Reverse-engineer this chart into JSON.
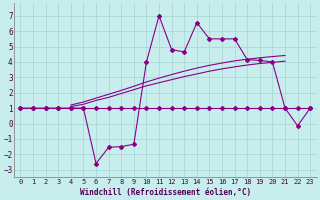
{
  "xlabel": "Windchill (Refroidissement éolien,°C)",
  "x_ticks": [
    0,
    1,
    2,
    3,
    4,
    5,
    6,
    7,
    8,
    9,
    10,
    11,
    12,
    13,
    14,
    15,
    16,
    17,
    18,
    19,
    20,
    21,
    22,
    23
  ],
  "ylim": [
    -3.5,
    7.8
  ],
  "xlim": [
    -0.5,
    23.5
  ],
  "yticks": [
    -3,
    -2,
    -1,
    0,
    1,
    2,
    3,
    4,
    5,
    6,
    7
  ],
  "bg_color": "#c8eded",
  "grid_color": "#a8d4d4",
  "line_color": "#880088",
  "flat_line_x": [
    0,
    1,
    2,
    3,
    4,
    5,
    6,
    7,
    8,
    9,
    10,
    11,
    12,
    13,
    14,
    15,
    16,
    17,
    18,
    19,
    20,
    21,
    22,
    23
  ],
  "flat_line_y": [
    1,
    1,
    1,
    1,
    1,
    1,
    1,
    1,
    1,
    1,
    1,
    1,
    1,
    1,
    1,
    1,
    1,
    1,
    1,
    1,
    1,
    1,
    1,
    1
  ],
  "reg_line1_x": [
    4,
    5,
    6,
    7,
    8,
    9,
    10,
    11,
    12,
    13,
    14,
    15,
    16,
    17,
    18,
    19,
    20,
    21
  ],
  "reg_line1_y": [
    1.1,
    1.25,
    1.5,
    1.7,
    1.95,
    2.2,
    2.45,
    2.65,
    2.85,
    3.05,
    3.22,
    3.4,
    3.55,
    3.68,
    3.8,
    3.9,
    3.97,
    4.05
  ],
  "reg_line2_x": [
    4,
    5,
    6,
    7,
    8,
    9,
    10,
    11,
    12,
    13,
    14,
    15,
    16,
    17,
    18,
    19,
    20,
    21
  ],
  "reg_line2_y": [
    1.2,
    1.4,
    1.65,
    1.9,
    2.15,
    2.42,
    2.7,
    2.95,
    3.18,
    3.4,
    3.6,
    3.78,
    3.93,
    4.07,
    4.18,
    4.27,
    4.35,
    4.42
  ],
  "main_x": [
    0,
    1,
    2,
    3,
    4,
    5,
    6,
    7,
    8,
    9,
    10,
    11,
    12,
    13,
    14,
    15,
    16,
    17,
    18,
    19,
    20,
    21,
    22,
    23
  ],
  "main_y": [
    1.0,
    1.0,
    1.0,
    1.0,
    1.0,
    1.0,
    -2.6,
    -1.55,
    -1.5,
    -1.35,
    4.0,
    7.0,
    4.8,
    4.65,
    6.55,
    5.5,
    5.5,
    5.5,
    4.15,
    4.1,
    4.0,
    1.0,
    -0.15,
    1.0
  ]
}
